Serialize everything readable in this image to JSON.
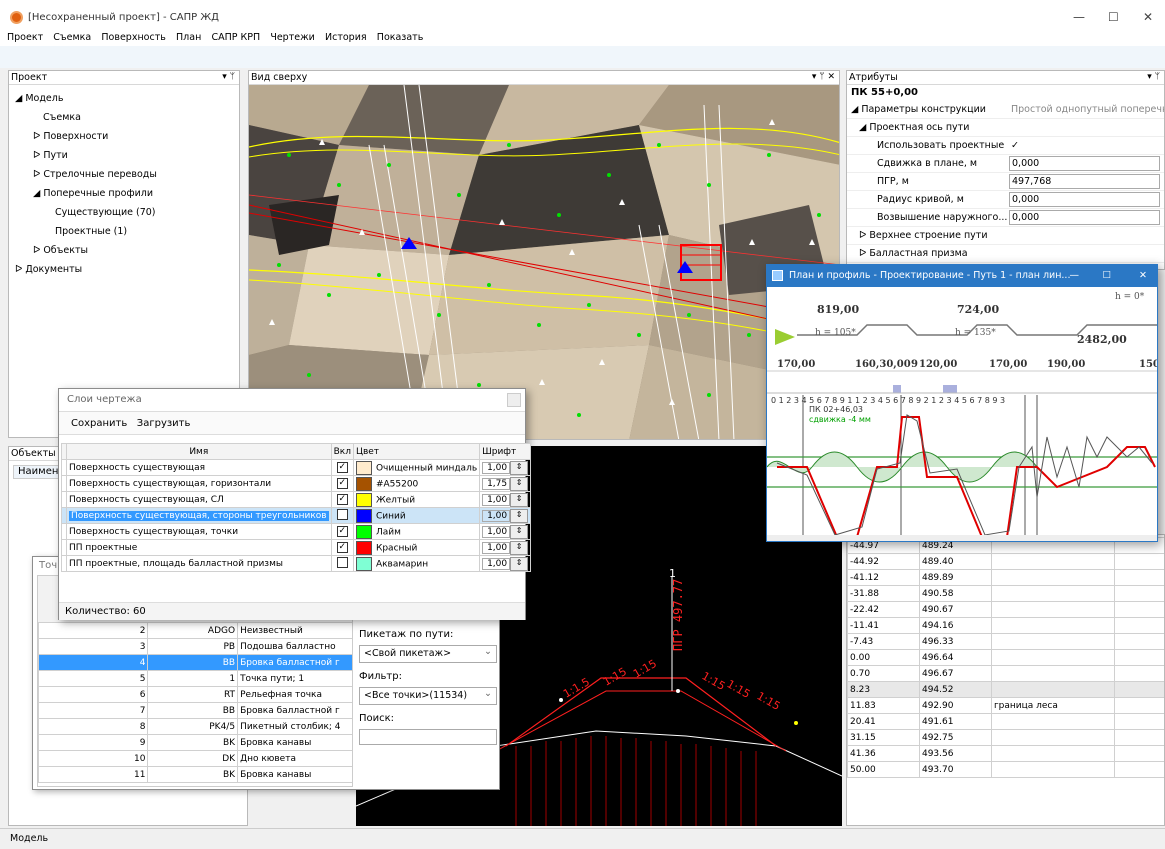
{
  "window": {
    "title": "[Несохраненный проект] - САПР ЖД",
    "min": "—",
    "max": "☐",
    "close": "✕"
  },
  "menu": [
    "Проект",
    "Съемка",
    "Поверхность",
    "План",
    "САПР КРП",
    "Чертежи",
    "История",
    "Показать"
  ],
  "project_panel": {
    "title": "Проект",
    "tree": [
      {
        "label": "◢ Модель",
        "indent": 6
      },
      {
        "label": "Съемка",
        "indent": 34
      },
      {
        "label": "ᐅ Поверхности",
        "indent": 24
      },
      {
        "label": "ᐅ Пути",
        "indent": 24
      },
      {
        "label": "ᐅ Стрелочные переводы",
        "indent": 24
      },
      {
        "label": "◢ Поперечные профили",
        "indent": 24
      },
      {
        "label": "Существующие (70)",
        "indent": 46
      },
      {
        "label": "Проектные (1)",
        "indent": 46
      },
      {
        "label": "ᐅ Объекты",
        "indent": 24
      },
      {
        "label": "ᐅ Документы",
        "indent": 6
      }
    ]
  },
  "top_view": {
    "title": "Вид сверху"
  },
  "attributes": {
    "title": "Атрибуты",
    "header": "ПК 55+0,00",
    "rows": [
      {
        "name": "◢ Параметры конструкции",
        "value": "Простой однопутный поперечн",
        "indent": 4
      },
      {
        "name": "◢ Проектная ось пути",
        "value": "",
        "indent": 12
      },
      {
        "name": "Использовать проектные",
        "value": "✓",
        "indent": 30
      },
      {
        "name": "Сдвижка в плане, м",
        "value": "0,000",
        "indent": 30
      },
      {
        "name": "ПГР, м",
        "value": "497,768",
        "indent": 30
      },
      {
        "name": "Радиус кривой, м",
        "value": "0,000",
        "indent": 30
      },
      {
        "name": "Возвышение наружного...",
        "value": "0,000",
        "indent": 30
      },
      {
        "name": "ᐅ Верхнее строение пути",
        "value": "",
        "indent": 12
      },
      {
        "name": "ᐅ Балластная призма",
        "value": "",
        "indent": 12
      },
      {
        "name": "ᐅ Подбалластный защитный с",
        "value": "",
        "indent": 12
      }
    ]
  },
  "layers": {
    "title": "Слои чертежа",
    "save": "Сохранить",
    "load": "Загрузить",
    "headers": {
      "name": "Имя",
      "on": "Вкл",
      "color": "Цвет",
      "font": "Шрифт"
    },
    "rows": [
      {
        "name": "Поверхность существующая",
        "on": true,
        "color": "Очищенный миндаль",
        "hex": "#ffebcd",
        "font": "1,00"
      },
      {
        "name": "Поверхность существующая, горизонтали",
        "on": true,
        "color": "#A55200",
        "hex": "#a55200",
        "font": "1,75"
      },
      {
        "name": "Поверхность существующая, СЛ",
        "on": true,
        "color": "Желтый",
        "hex": "#ffff00",
        "font": "1,00"
      },
      {
        "name": "Поверхность существующая, стороны треугольников",
        "on": false,
        "color": "Синий",
        "hex": "#0000ff",
        "font": "1,00"
      },
      {
        "name": "Поверхность существующая, точки",
        "on": true,
        "color": "Лайм",
        "hex": "#00ff00",
        "font": "1,00"
      },
      {
        "name": "ПП проектные",
        "on": true,
        "color": "Красный",
        "hex": "#ff0000",
        "font": "1,00"
      },
      {
        "name": "ПП проектные, площадь балластной призмы",
        "on": false,
        "color": "Аквамарин",
        "hex": "#7fffd4",
        "font": "1,00"
      }
    ],
    "count": "Количество: 60"
  },
  "objects_panel": {
    "title": "Объекты",
    "col": "Наимен"
  },
  "points_window": {
    "title": "Точк",
    "rows": [
      {
        "n": "2",
        "code": "ADGO",
        "desc": "Неизвестный"
      },
      {
        "n": "3",
        "code": "PB",
        "desc": "Подошва балластно"
      },
      {
        "n": "4",
        "code": "BB",
        "desc": "Бровка балластной г"
      },
      {
        "n": "5",
        "code": "1",
        "desc": "Точка пути; 1"
      },
      {
        "n": "6",
        "code": "RT",
        "desc": "Рельефная точка"
      },
      {
        "n": "7",
        "code": "BB",
        "desc": "Бровка балластной г"
      },
      {
        "n": "8",
        "code": "PK4/5",
        "desc": "Пикетный столбик; 4"
      },
      {
        "n": "9",
        "code": "BK",
        "desc": "Бровка канавы"
      },
      {
        "n": "10",
        "code": "DK",
        "desc": "Дно кювета"
      },
      {
        "n": "11",
        "code": "BK",
        "desc": "Бровка канавы"
      }
    ],
    "picket_label": "Пикетаж по пути:",
    "picket_value": "<Свой пикетаж>",
    "filter_label": "Фильтр:",
    "filter_value": "<Все точки>(11534)",
    "search_label": "Поиск:"
  },
  "cross_section": {
    "pgr_label": "ПГР 497.77",
    "axis_number": "1",
    "slopes": [
      "1:1.5",
      "1:15",
      "1:15",
      "1:15",
      "1:15",
      "1:15",
      "1:15",
      "1:15"
    ]
  },
  "table_right": {
    "rows": [
      {
        "x": "-44.97",
        "z": "489.24",
        "note": ""
      },
      {
        "x": "-44.92",
        "z": "489.40",
        "note": ""
      },
      {
        "x": "-41.12",
        "z": "489.89",
        "note": ""
      },
      {
        "x": "-31.88",
        "z": "490.58",
        "note": ""
      },
      {
        "x": "-22.42",
        "z": "490.67",
        "note": ""
      },
      {
        "x": "-11.41",
        "z": "494.16",
        "note": ""
      },
      {
        "x": "-7.43",
        "z": "496.33",
        "note": ""
      },
      {
        "x": "0.00",
        "z": "496.64",
        "note": ""
      },
      {
        "x": "0.70",
        "z": "496.67",
        "note": ""
      },
      {
        "x": "8.23",
        "z": "494.52",
        "note": ""
      },
      {
        "x": "11.83",
        "z": "492.90",
        "note": "граница леса"
      },
      {
        "x": "20.41",
        "z": "491.61",
        "note": ""
      },
      {
        "x": "31.15",
        "z": "492.75",
        "note": ""
      },
      {
        "x": "41.36",
        "z": "493.56",
        "note": ""
      },
      {
        "x": "50.00",
        "z": "493.70",
        "note": ""
      }
    ]
  },
  "plan_window": {
    "title": "План и профиль - Проектирование - Путь 1 - план лин...",
    "labels": [
      "819,00",
      "724,00",
      "2482,00",
      "h = 0*",
      "h = 105*",
      "h = 135*",
      "170,00",
      "160,30,00",
      "9",
      "120,00",
      "170,00",
      "190,00",
      "150,"
    ],
    "pk_label": "ПК 02+46,03",
    "shift_label": "сдвижка -4 мм",
    "scale_top": "0 1 2 3 4 5 6 7 8 9 1 1 2 3 4 5 6 7 8 9 2 1 2 3 4 5 6 7 8 9 3"
  },
  "status": "Модель"
}
